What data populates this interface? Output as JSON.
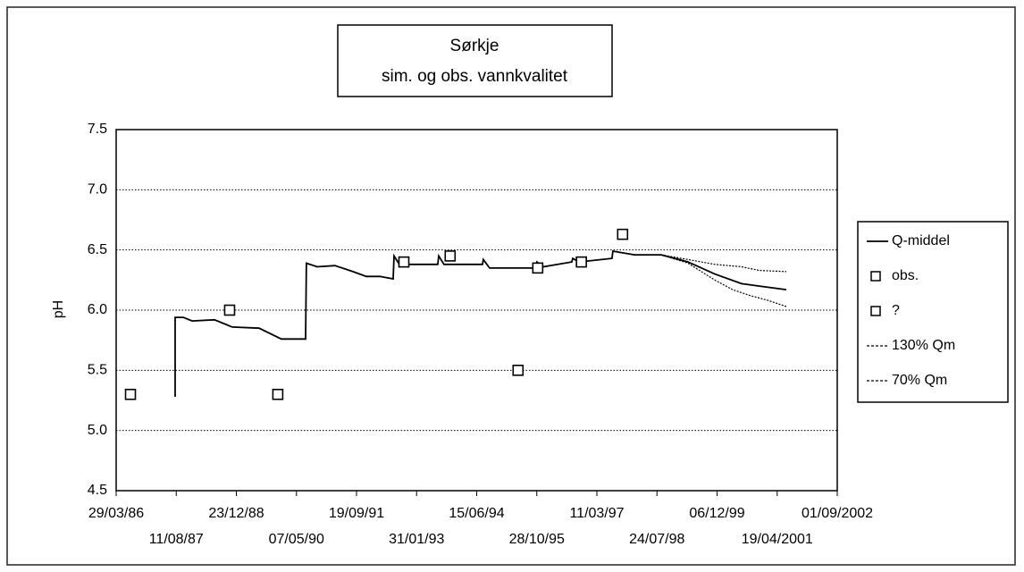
{
  "chart_data": {
    "type": "line",
    "title": "Sørkje",
    "subtitle": "sim. og obs. vannkvalitet",
    "y_label": "pH",
    "ylim": [
      4.5,
      7.5
    ],
    "yticks": [
      {
        "value": 4.5,
        "label": "4.5"
      },
      {
        "value": 5,
        "label": "5.0"
      },
      {
        "value": 5.5,
        "label": "5.5"
      },
      {
        "value": 6,
        "label": "6.0"
      },
      {
        "value": 6.5,
        "label": "6.5"
      },
      {
        "value": 7,
        "label": "7.0"
      },
      {
        "value": 7.5,
        "label": "7.5"
      }
    ],
    "xlim": [
      "1986-03-29",
      "2002-09-01"
    ],
    "xticks": [
      {
        "value": "1986-03-29",
        "label": "29/03/86"
      },
      {
        "value": "1987-08-11",
        "label": "11/08/87"
      },
      {
        "value": "1988-12-23",
        "label": "23/12/88"
      },
      {
        "value": "1990-05-07",
        "label": "07/05/90"
      },
      {
        "value": "1991-09-19",
        "label": "19/09/91"
      },
      {
        "value": "1993-01-31",
        "label": "31/01/93"
      },
      {
        "value": "1994-06-15",
        "label": "15/06/94"
      },
      {
        "value": "1995-10-28",
        "label": "28/10/95"
      },
      {
        "value": "1997-03-11",
        "label": "11/03/97"
      },
      {
        "value": "1998-07-24",
        "label": "24/07/98"
      },
      {
        "value": "1999-12-06",
        "label": "06/12/99"
      },
      {
        "value": "2001-04-19",
        "label": "19/04/2001"
      },
      {
        "value": "2002-09-01",
        "label": "01/09/2002"
      }
    ],
    "grid": true,
    "legend": "right",
    "series": [
      {
        "name": "Q-middel",
        "color": "#000000",
        "style": "solid",
        "x": [
          "1987-08-02",
          "1987-08-02",
          "1987-10-08",
          "1987-12-21",
          "1988-06-24",
          "1988-11-19",
          "1989-06-30",
          "1990-01-02",
          "1990-07-22",
          "1990-07-29",
          "1990-10-27",
          "1991-03-24",
          "1991-08-20",
          "1991-12-10",
          "1992-03-30",
          "1992-07-20",
          "1992-07-27",
          "1992-09-10",
          "1993-07-26",
          "1993-08-03",
          "1993-09-16",
          "1994-08-02",
          "1994-08-09",
          "1994-09-30",
          "1995-10-22",
          "1995-10-29",
          "1995-12-21",
          "1996-08-14",
          "1996-08-22",
          "1996-10-13",
          "1997-07-15",
          "1997-07-22",
          "1998-01-17",
          "1998-08-28",
          "1999-04-08",
          "1999-11-17",
          "2000-06-27",
          "2000-11-23",
          "2001-07-04"
        ],
        "values": [
          5.28,
          5.94,
          5.94,
          5.91,
          5.92,
          5.86,
          5.85,
          5.76,
          5.76,
          6.39,
          6.36,
          6.37,
          6.32,
          6.28,
          6.28,
          6.26,
          6.45,
          6.38,
          6.38,
          6.45,
          6.38,
          6.38,
          6.42,
          6.35,
          6.35,
          6.4,
          6.36,
          6.4,
          6.43,
          6.4,
          6.43,
          6.49,
          6.46,
          6.46,
          6.4,
          6.3,
          6.22,
          6.2,
          6.17
        ]
      },
      {
        "name": "obs.",
        "color": "#000000",
        "style": "square",
        "x": [
          "1986-07-26",
          "1988-10-28",
          "1989-12-03",
          "1992-10-17",
          "1993-11-06",
          "1995-05-25",
          "1995-11-05",
          "1996-11-02",
          "1997-10-11"
        ],
        "values": [
          5.3,
          6.0,
          5.3,
          6.4,
          6.45,
          5.5,
          6.35,
          6.4,
          6.63
        ]
      },
      {
        "name": "?",
        "color": "#000000",
        "style": "square",
        "x": [],
        "values": []
      },
      {
        "name": "130% Qm",
        "color": "#000000",
        "style": "dotted",
        "x": [
          "1998-08-28",
          "1999-04-08",
          "1999-11-17",
          "2000-06-27",
          "2000-11-23",
          "2001-07-04"
        ],
        "values": [
          6.46,
          6.42,
          6.38,
          6.36,
          6.33,
          6.32
        ]
      },
      {
        "name": "70% Qm",
        "color": "#000000",
        "style": "dotted",
        "x": [
          "1998-08-28",
          "1999-04-08",
          "1999-11-17",
          "2000-04-13",
          "2000-09-09",
          "2001-02-05",
          "2001-07-04"
        ],
        "values": [
          6.46,
          6.39,
          6.25,
          6.17,
          6.12,
          6.08,
          6.03
        ]
      }
    ]
  }
}
